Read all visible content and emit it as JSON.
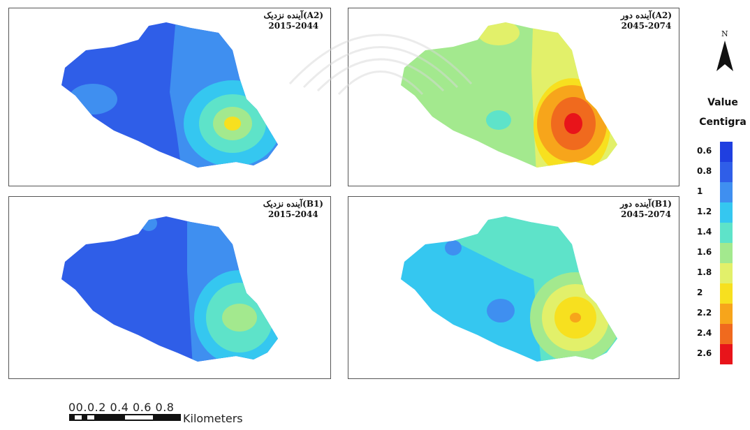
{
  "panels": [
    {
      "title_fa": "آینده نزدیک(A2)",
      "period": "2015-2044"
    },
    {
      "title_fa": "آینده دور(A2)",
      "period": "2045-2074"
    },
    {
      "title_fa": "آینده نزدیک(B1)",
      "period": "2015-2044"
    },
    {
      "title_fa": "آینده دور(B1)",
      "period": "2045-2074"
    }
  ],
  "north_label": "N",
  "legend": {
    "title_line1": "Value",
    "title_line2": "Centigra",
    "items": [
      {
        "label": "0.6",
        "color": "#1f3fe0"
      },
      {
        "label": "0.8",
        "color": "#2f5ee8"
      },
      {
        "label": "1",
        "color": "#3f8ff0"
      },
      {
        "label": "1.2",
        "color": "#35c7f0"
      },
      {
        "label": "1.4",
        "color": "#5ee3c9"
      },
      {
        "label": "1.6",
        "color": "#a3e98e"
      },
      {
        "label": "1.8",
        "color": "#e2f06a"
      },
      {
        "label": "2",
        "color": "#f7e01f"
      },
      {
        "label": "2.2",
        "color": "#f7a51b"
      },
      {
        "label": "2.4",
        "color": "#f06a1e"
      },
      {
        "label": "2.6",
        "color": "#e8141a"
      }
    ]
  },
  "scale": {
    "ticks": "00.0.2 0.4 0.6 0.8",
    "unit": "Kilometers"
  }
}
